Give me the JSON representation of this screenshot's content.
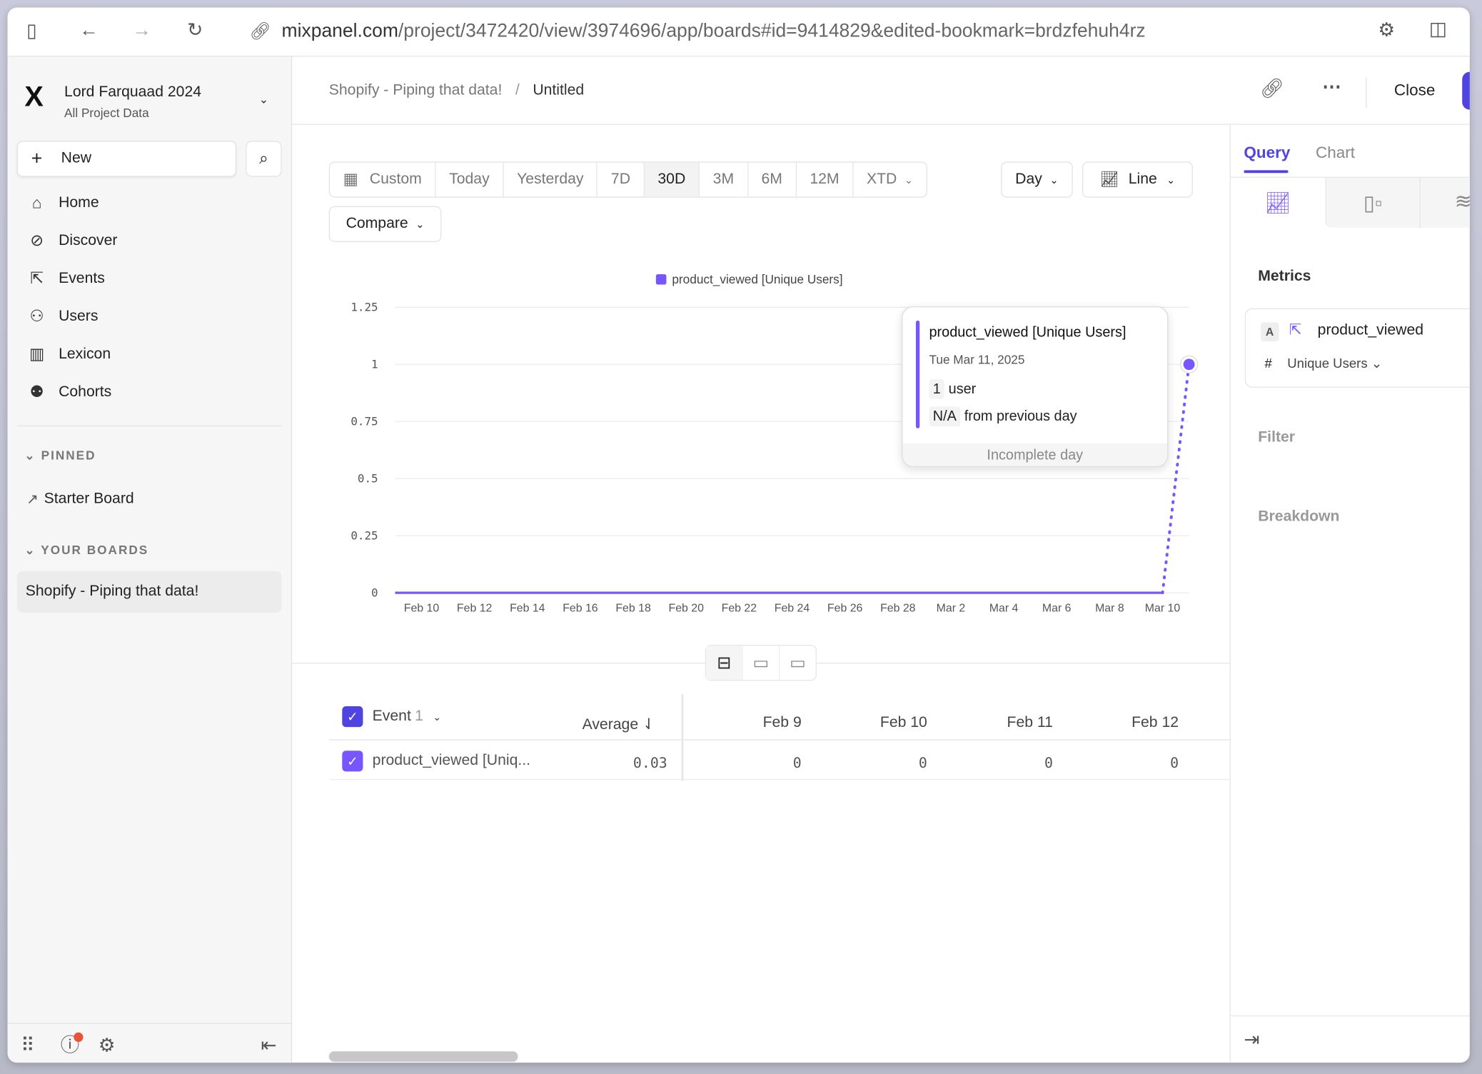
{
  "browser": {
    "url_host": "mixpanel.com",
    "url_path": "/project/3472420/view/3974696/app/boards#id=9414829&edited-bookmark=brdzfehuh4rz"
  },
  "sidebar": {
    "project_name": "Lord Farquaad 2024",
    "project_sub": "All Project Data",
    "new_label": "New",
    "items": [
      {
        "label": "Home",
        "icon": "home-icon"
      },
      {
        "label": "Discover",
        "icon": "compass-icon"
      },
      {
        "label": "Events",
        "icon": "cursor-click-icon"
      },
      {
        "label": "Users",
        "icon": "users-icon"
      },
      {
        "label": "Lexicon",
        "icon": "book-icon"
      },
      {
        "label": "Cohorts",
        "icon": "cohorts-icon"
      }
    ],
    "pinned_label": "PINNED",
    "pinned": [
      {
        "label": "Starter Board"
      }
    ],
    "boards_label": "YOUR BOARDS",
    "boards": [
      {
        "label": "Shopify - Piping that data!",
        "active": true
      }
    ]
  },
  "header": {
    "breadcrumb_parent": "Shopify - Piping that data!",
    "breadcrumb_sep": "/",
    "breadcrumb_current": "Untitled",
    "close_label": "Close"
  },
  "toolbar": {
    "ranges": [
      "Custom",
      "Today",
      "Yesterday",
      "7D",
      "30D",
      "3M",
      "6M",
      "12M",
      "XTD"
    ],
    "selected_range": "30D",
    "interval": "Day",
    "chart_type": "Line",
    "compare": "Compare"
  },
  "chart_data": {
    "type": "line",
    "legend": "product_viewed [Unique Users]",
    "legend_position": "top-center",
    "color": "#7856ff",
    "grid": true,
    "y_ticks": [
      "1.25",
      "1",
      "0.75",
      "0.5",
      "0.25",
      "0"
    ],
    "ylim": [
      0,
      1.25
    ],
    "x_ticks": [
      "Feb 10",
      "Feb 12",
      "Feb 14",
      "Feb 16",
      "Feb 18",
      "Feb 20",
      "Feb 22",
      "Feb 24",
      "Feb 26",
      "Feb 28",
      "Mar 2",
      "Mar 4",
      "Mar 6",
      "Mar 8",
      "Mar 10"
    ],
    "x": [
      "Feb 9",
      "Feb 10",
      "Feb 11",
      "Feb 12",
      "Feb 13",
      "Feb 14",
      "Feb 15",
      "Feb 16",
      "Feb 17",
      "Feb 18",
      "Feb 19",
      "Feb 20",
      "Feb 21",
      "Feb 22",
      "Feb 23",
      "Feb 24",
      "Feb 25",
      "Feb 26",
      "Feb 27",
      "Feb 28",
      "Mar 1",
      "Mar 2",
      "Mar 3",
      "Mar 4",
      "Mar 5",
      "Mar 6",
      "Mar 7",
      "Mar 8",
      "Mar 9",
      "Mar 10",
      "Mar 11"
    ],
    "values": [
      0,
      0,
      0,
      0,
      0,
      0,
      0,
      0,
      0,
      0,
      0,
      0,
      0,
      0,
      0,
      0,
      0,
      0,
      0,
      0,
      0,
      0,
      0,
      0,
      0,
      0,
      0,
      0,
      0,
      0,
      1
    ],
    "incomplete_last": true
  },
  "tooltip": {
    "title": "product_viewed [Unique Users]",
    "date": "Tue Mar 11, 2025",
    "value": "1",
    "unit": "user",
    "change": "N/A",
    "change_text": "from previous day",
    "footer": "Incomplete day"
  },
  "table": {
    "event_header": "Event",
    "event_count": "1",
    "average_header": "Average",
    "columns": [
      "Feb 9",
      "Feb 10",
      "Feb 11",
      "Feb 12"
    ],
    "rows": [
      {
        "name": "product_viewed [Uniq...",
        "average": "0.03",
        "values": [
          "0",
          "0",
          "0",
          "0"
        ]
      }
    ]
  },
  "panel": {
    "tabs": [
      "Query",
      "Chart"
    ],
    "active_tab": "Query",
    "metrics_label": "Metrics",
    "metric_letter": "A",
    "metric_name": "product_viewed",
    "metric_hash": "#",
    "metric_measure": "Unique Users",
    "filter_label": "Filter",
    "breakdown_label": "Breakdown"
  },
  "colors": {
    "accent": "#5a45e6",
    "series": "#7856ff"
  }
}
